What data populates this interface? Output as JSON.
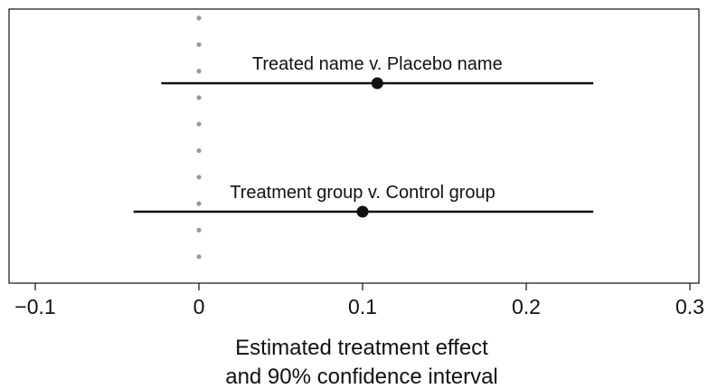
{
  "chart_data": {
    "type": "scatter",
    "title": "",
    "xlabel_lines": [
      "Estimated treatment effect",
      "and 90% confidence interval"
    ],
    "ylabel": "",
    "xlim": [
      -0.1,
      0.3
    ],
    "x_ticks": [
      -0.1,
      0,
      0.1,
      0.2,
      0.3
    ],
    "x_tick_labels": [
      "−0.1",
      "0",
      "0.1",
      "0.2",
      "0.3"
    ],
    "reference_line": {
      "x": 0,
      "style": "dotted",
      "color": "#999999"
    },
    "grid": false,
    "legend": "none",
    "point_color": "#111111",
    "series": [
      {
        "label": "Treated name v. Placebo name",
        "estimate": 0.109,
        "ci_low": -0.023,
        "ci_high": 0.241
      },
      {
        "label": "Treatment group v. Control group",
        "estimate": 0.1,
        "ci_low": -0.04,
        "ci_high": 0.241
      }
    ]
  }
}
